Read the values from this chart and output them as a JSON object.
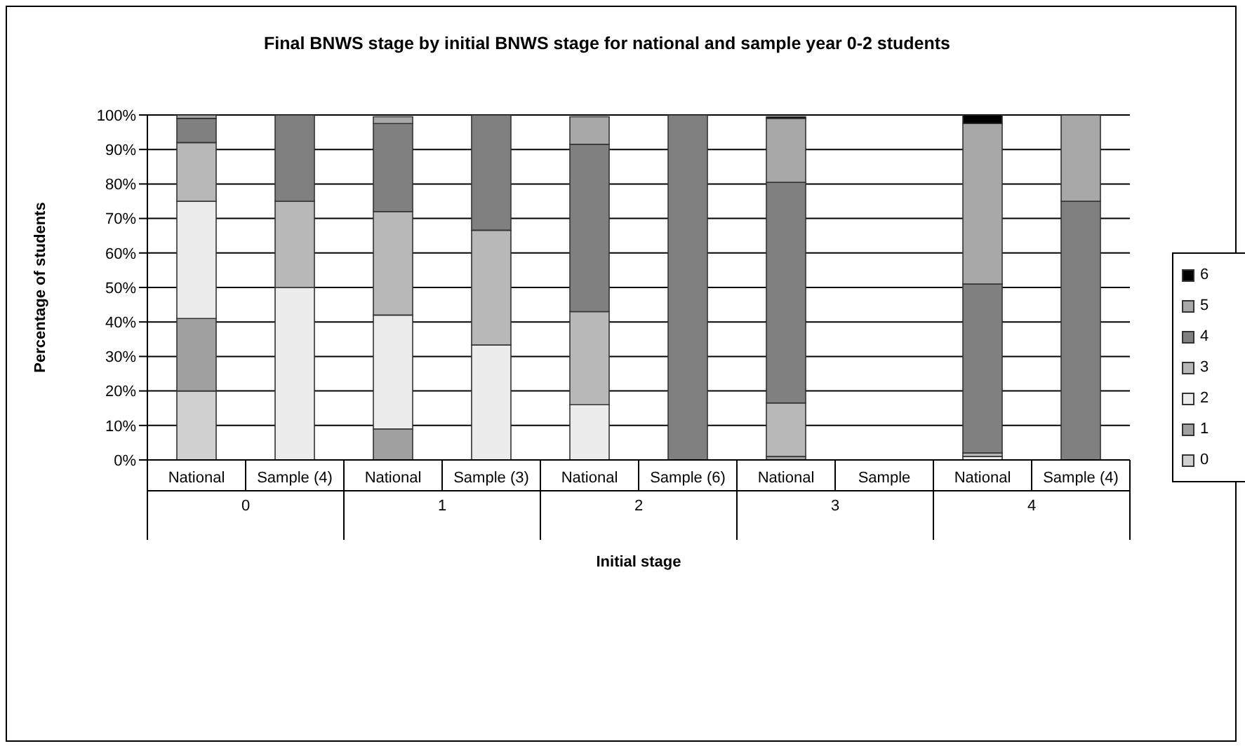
{
  "chart_data": {
    "type": "bar",
    "stacked": true,
    "title": "Final BNWS stage by initial BNWS stage for national and sample year 0-2 students",
    "xlabel": "Initial stage",
    "ylabel": "Percentage of students",
    "categories": [
      "National",
      "Sample (4)",
      "National",
      "Sample (3)",
      "National",
      "Sample (6)",
      "National",
      "Sample",
      "National",
      "Sample (4)"
    ],
    "annotations": [
      "0",
      "1",
      "2",
      "3",
      "4"
    ],
    "series": [
      {
        "name": "0",
        "color": "#d0d0d0",
        "values": [
          20,
          null,
          null,
          null,
          null,
          null,
          null,
          null,
          null,
          null
        ]
      },
      {
        "name": "1",
        "color": "#a0a0a0",
        "values": [
          21,
          null,
          9,
          null,
          null,
          null,
          1,
          null,
          null,
          null
        ]
      },
      {
        "name": "2",
        "color": "#ececec",
        "values": [
          34,
          50,
          33,
          33.3,
          16,
          null,
          null,
          null,
          1,
          null
        ]
      },
      {
        "name": "3",
        "color": "#b8b8b8",
        "values": [
          17,
          25,
          30,
          33.3,
          27,
          null,
          15.5,
          null,
          1,
          null
        ]
      },
      {
        "name": "4",
        "color": "#808080",
        "values": [
          7,
          25,
          25.5,
          33.4,
          48.5,
          100,
          64,
          null,
          49,
          75
        ]
      },
      {
        "name": "5",
        "color": "#a8a8a8",
        "values": [
          1,
          null,
          2,
          null,
          8,
          null,
          18.5,
          null,
          46.5,
          25
        ]
      },
      {
        "name": "6",
        "color": "#000000",
        "values": [
          null,
          null,
          null,
          null,
          null,
          null,
          0.5,
          null,
          2.5,
          null
        ]
      }
    ],
    "ylim": [
      0,
      100
    ],
    "yticks": [
      {
        "value": 0,
        "label": "0%"
      },
      {
        "value": 10,
        "label": "10%"
      },
      {
        "value": 20,
        "label": "20%"
      },
      {
        "value": 30,
        "label": "30%"
      },
      {
        "value": 40,
        "label": "40%"
      },
      {
        "value": 50,
        "label": "50%"
      },
      {
        "value": 60,
        "label": "60%"
      },
      {
        "value": 70,
        "label": "70%"
      },
      {
        "value": 80,
        "label": "80%"
      },
      {
        "value": 90,
        "label": "90%"
      },
      {
        "value": 100,
        "label": "100%"
      }
    ],
    "grid": "y",
    "legend": "right"
  }
}
